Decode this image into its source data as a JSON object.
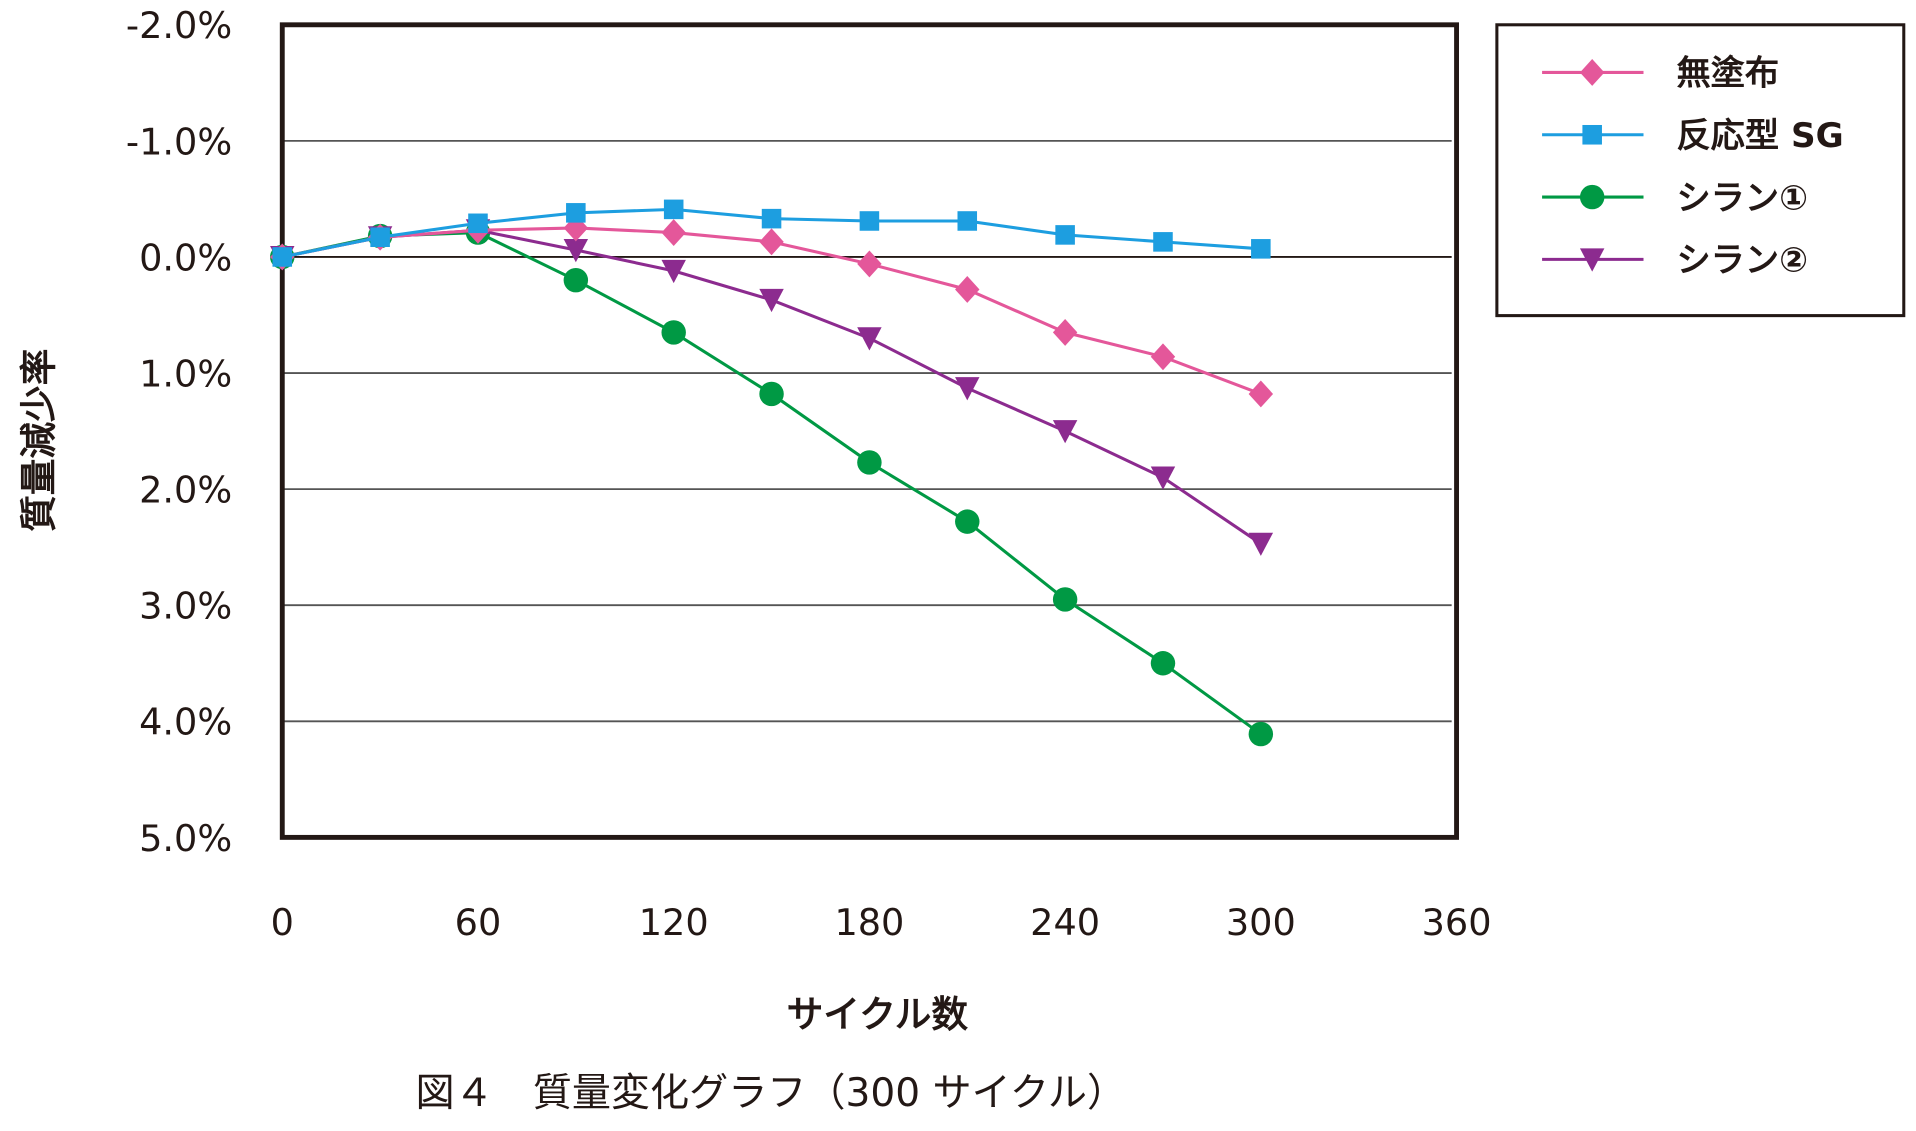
{
  "chart_data": {
    "type": "line",
    "title": "",
    "caption": "図４　質量変化グラフ（300 サイクル）",
    "xlabel": "サイクル数",
    "ylabel": "質量減少率",
    "xlim": [
      0,
      360
    ],
    "ylim": [
      5.0,
      -2.0
    ],
    "y_axis_reversed": true,
    "grid": "horizontal",
    "legend_position": "right",
    "x_ticks": [
      "0",
      "60",
      "120",
      "180",
      "240",
      "300",
      "360"
    ],
    "y_ticks": [
      "-2.0%",
      "-1.0%",
      "0.0%",
      "1.0%",
      "2.0%",
      "3.0%",
      "4.0%",
      "5.0%"
    ],
    "x": [
      0,
      30,
      60,
      90,
      120,
      150,
      180,
      210,
      240,
      270,
      300
    ],
    "series": [
      {
        "name": "無塗布",
        "color": "#e4579a",
        "marker": "diamond",
        "values": [
          0.0,
          -0.17,
          -0.23,
          -0.25,
          -0.21,
          -0.13,
          0.06,
          0.28,
          0.65,
          0.86,
          1.18
        ]
      },
      {
        "name": "反応型 SG",
        "color": "#1d9ee0",
        "marker": "square",
        "values": [
          0.0,
          -0.17,
          -0.29,
          -0.38,
          -0.41,
          -0.33,
          -0.31,
          -0.31,
          -0.19,
          -0.13,
          -0.07
        ]
      },
      {
        "name": "シラン①",
        "color": "#009944",
        "marker": "circle",
        "values": [
          0.0,
          -0.18,
          -0.21,
          0.2,
          0.65,
          1.18,
          1.77,
          2.28,
          2.95,
          3.5,
          4.11
        ]
      },
      {
        "name": "シラン②",
        "color": "#8c2b8f",
        "marker": "triangle-down",
        "values": [
          0.0,
          -0.17,
          -0.23,
          -0.06,
          0.12,
          0.37,
          0.7,
          1.13,
          1.5,
          1.9,
          2.47
        ]
      }
    ]
  }
}
